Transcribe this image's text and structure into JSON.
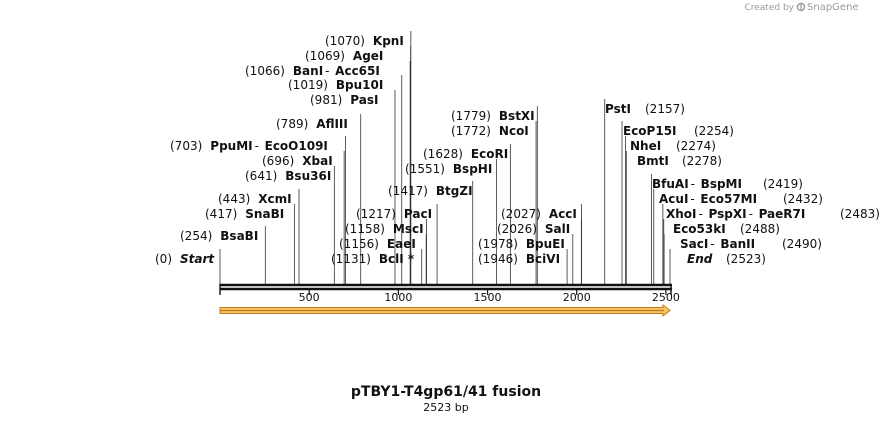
{
  "branding": {
    "created_by": "Created by",
    "logo_icon": "snapgene-logo-icon",
    "logo_text": "SnapGene"
  },
  "plasmid": {
    "name": "pTBY1-T4gp61/41 fusion",
    "length_label": "2523 bp",
    "length": 2523
  },
  "axis": {
    "start": 0,
    "end": 2523,
    "ticks": [
      {
        "value": 500,
        "label": "500"
      },
      {
        "value": 1000,
        "label": "1000"
      },
      {
        "value": 1500,
        "label": "1500"
      },
      {
        "value": 2000,
        "label": "2000"
      },
      {
        "value": 2500,
        "label": "2500"
      }
    ]
  },
  "feature": {
    "name": "feature-arrow",
    "start": 0,
    "end": 2523,
    "direction": "forward",
    "fill_color": "#f5c56a",
    "stroke_color": "#c07a16"
  },
  "left_sites": [
    {
      "pos": "(0)",
      "names": [
        "Start"
      ],
      "site": 0,
      "special": true
    },
    {
      "pos": "(254)",
      "names": [
        "BsaBI"
      ],
      "site": 254
    },
    {
      "pos": "(417)",
      "names": [
        "SnaBI"
      ],
      "site": 417
    },
    {
      "pos": "(443)",
      "names": [
        "XcmI"
      ],
      "site": 443
    },
    {
      "pos": "(641)",
      "names": [
        "Bsu36I"
      ],
      "site": 641
    },
    {
      "pos": "(696)",
      "names": [
        "XbaI"
      ],
      "site": 696
    },
    {
      "pos": "(703)",
      "names": [
        "PpuMI",
        "EcoO109I"
      ],
      "site": 703
    },
    {
      "pos": "(789)",
      "names": [
        "AflIII"
      ],
      "site": 789
    },
    {
      "pos": "(981)",
      "names": [
        "PasI"
      ],
      "site": 981
    },
    {
      "pos": "(1019)",
      "names": [
        "Bpu10I"
      ],
      "site": 1019
    },
    {
      "pos": "(1066)",
      "names": [
        "BanI",
        "Acc65I"
      ],
      "site": 1066
    },
    {
      "pos": "(1069)",
      "names": [
        "AgeI"
      ],
      "site": 1069
    },
    {
      "pos": "(1070)",
      "names": [
        "KpnI"
      ],
      "site": 1070
    },
    {
      "pos": "(1131)",
      "names": [
        "BclI *"
      ],
      "site": 1131
    },
    {
      "pos": "(1156)",
      "names": [
        "EaeI"
      ],
      "site": 1156
    },
    {
      "pos": "(1158)",
      "names": [
        "MscI"
      ],
      "site": 1158
    },
    {
      "pos": "(1217)",
      "names": [
        "PacI"
      ],
      "site": 1217
    },
    {
      "pos": "(1417)",
      "names": [
        "BtgZI"
      ],
      "site": 1417
    },
    {
      "pos": "(1551)",
      "names": [
        "BspHI"
      ],
      "site": 1551
    },
    {
      "pos": "(1628)",
      "names": [
        "EcoRI"
      ],
      "site": 1628
    },
    {
      "pos": "(1772)",
      "names": [
        "NcoI"
      ],
      "site": 1772
    },
    {
      "pos": "(1779)",
      "names": [
        "BstXI"
      ],
      "site": 1779
    },
    {
      "pos": "(1946)",
      "names": [
        "BciVI"
      ],
      "site": 1946
    },
    {
      "pos": "(1978)",
      "names": [
        "BpuEI"
      ],
      "site": 1978
    },
    {
      "pos": "(2026)",
      "names": [
        "SalI"
      ],
      "site": 2026
    },
    {
      "pos": "(2027)",
      "names": [
        "AccI"
      ],
      "site": 2027
    }
  ],
  "right_sites": [
    {
      "pos": "(2157)",
      "names": [
        "PstI"
      ],
      "site": 2157
    },
    {
      "pos": "(2254)",
      "names": [
        "EcoP15I"
      ],
      "site": 2254
    },
    {
      "pos": "(2274)",
      "names": [
        "NheI"
      ],
      "site": 2274
    },
    {
      "pos": "(2278)",
      "names": [
        "BmtI"
      ],
      "site": 2278
    },
    {
      "pos": "(2419)",
      "names": [
        "BfuAI",
        "BspMI"
      ],
      "site": 2419
    },
    {
      "pos": "(2432)",
      "names": [
        "AcuI",
        "Eco57MI"
      ],
      "site": 2432
    },
    {
      "pos": "(2483)",
      "names": [
        "XhoI",
        "PspXI",
        "PaeR7I"
      ],
      "site": 2483
    },
    {
      "pos": "(2488)",
      "names": [
        "Eco53kI"
      ],
      "site": 2488
    },
    {
      "pos": "(2490)",
      "names": [
        "SacI",
        "BanII"
      ],
      "site": 2490
    },
    {
      "pos": "(2523)",
      "names": [
        "End"
      ],
      "site": 2523,
      "special": true
    }
  ]
}
